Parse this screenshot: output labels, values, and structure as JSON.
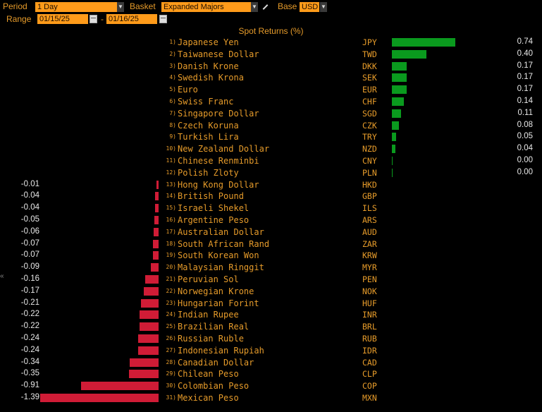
{
  "controls": {
    "period_label": "Period",
    "period_value": "1 Day",
    "basket_label": "Basket",
    "basket_value": "Expanded Majors",
    "base_label": "Base",
    "base_value": "USD",
    "range_label": "Range",
    "date_from": "01/15/25",
    "date_sep": "-",
    "date_to": "01/16/25"
  },
  "chart_title": "Spot Returns (%)",
  "colors": {
    "positive": "#0a9a1e",
    "negative": "#d01c36",
    "accent": "#ff9b1a"
  },
  "chart_data": {
    "type": "bar",
    "title": "Spot Returns (%)",
    "rows": [
      {
        "rank": "1)",
        "name": "Japanese Yen",
        "code": "JPY",
        "value": 0.74,
        "label": "0.74"
      },
      {
        "rank": "2)",
        "name": "Taiwanese Dollar",
        "code": "TWD",
        "value": 0.4,
        "label": "0.40"
      },
      {
        "rank": "3)",
        "name": "Danish Krone",
        "code": "DKK",
        "value": 0.17,
        "label": "0.17"
      },
      {
        "rank": "4)",
        "name": "Swedish Krona",
        "code": "SEK",
        "value": 0.17,
        "label": "0.17"
      },
      {
        "rank": "5)",
        "name": "Euro",
        "code": "EUR",
        "value": 0.17,
        "label": "0.17"
      },
      {
        "rank": "6)",
        "name": "Swiss Franc",
        "code": "CHF",
        "value": 0.14,
        "label": "0.14"
      },
      {
        "rank": "7)",
        "name": "Singapore Dollar",
        "code": "SGD",
        "value": 0.11,
        "label": "0.11"
      },
      {
        "rank": "8)",
        "name": "Czech Koruna",
        "code": "CZK",
        "value": 0.08,
        "label": "0.08"
      },
      {
        "rank": "9)",
        "name": "Turkish Lira",
        "code": "TRY",
        "value": 0.05,
        "label": "0.05"
      },
      {
        "rank": "10)",
        "name": "New Zealand Dollar",
        "code": "NZD",
        "value": 0.04,
        "label": "0.04"
      },
      {
        "rank": "11)",
        "name": "Chinese Renminbi",
        "code": "CNY",
        "value": 0.0,
        "label": "0.00"
      },
      {
        "rank": "12)",
        "name": "Polish Zloty",
        "code": "PLN",
        "value": 0.0,
        "label": "0.00"
      },
      {
        "rank": "13)",
        "name": "Hong Kong Dollar",
        "code": "HKD",
        "value": -0.01,
        "label": "-0.01"
      },
      {
        "rank": "14)",
        "name": "British Pound",
        "code": "GBP",
        "value": -0.04,
        "label": "-0.04"
      },
      {
        "rank": "15)",
        "name": "Israeli Shekel",
        "code": "ILS",
        "value": -0.04,
        "label": "-0.04"
      },
      {
        "rank": "16)",
        "name": "Argentine Peso",
        "code": "ARS",
        "value": -0.05,
        "label": "-0.05"
      },
      {
        "rank": "17)",
        "name": "Australian Dollar",
        "code": "AUD",
        "value": -0.06,
        "label": "-0.06"
      },
      {
        "rank": "18)",
        "name": "South African Rand",
        "code": "ZAR",
        "value": -0.07,
        "label": "-0.07"
      },
      {
        "rank": "19)",
        "name": "South Korean Won",
        "code": "KRW",
        "value": -0.07,
        "label": "-0.07"
      },
      {
        "rank": "20)",
        "name": "Malaysian Ringgit",
        "code": "MYR",
        "value": -0.09,
        "label": "-0.09"
      },
      {
        "rank": "21)",
        "name": "Peruvian Sol",
        "code": "PEN",
        "value": -0.16,
        "label": "-0.16"
      },
      {
        "rank": "22)",
        "name": "Norwegian Krone",
        "code": "NOK",
        "value": -0.17,
        "label": "-0.17"
      },
      {
        "rank": "23)",
        "name": "Hungarian Forint",
        "code": "HUF",
        "value": -0.21,
        "label": "-0.21"
      },
      {
        "rank": "24)",
        "name": "Indian Rupee",
        "code": "INR",
        "value": -0.22,
        "label": "-0.22"
      },
      {
        "rank": "25)",
        "name": "Brazilian Real",
        "code": "BRL",
        "value": -0.22,
        "label": "-0.22"
      },
      {
        "rank": "26)",
        "name": "Russian Ruble",
        "code": "RUB",
        "value": -0.24,
        "label": "-0.24"
      },
      {
        "rank": "27)",
        "name": "Indonesian Rupiah",
        "code": "IDR",
        "value": -0.24,
        "label": "-0.24"
      },
      {
        "rank": "28)",
        "name": "Canadian Dollar",
        "code": "CAD",
        "value": -0.34,
        "label": "-0.34"
      },
      {
        "rank": "29)",
        "name": "Chilean Peso",
        "code": "CLP",
        "value": -0.35,
        "label": "-0.35"
      },
      {
        "rank": "30)",
        "name": "Colombian Peso",
        "code": "COP",
        "value": -0.91,
        "label": "-0.91"
      },
      {
        "rank": "31)",
        "name": "Mexican Peso",
        "code": "MXN",
        "value": -1.39,
        "label": "-1.39"
      }
    ]
  }
}
